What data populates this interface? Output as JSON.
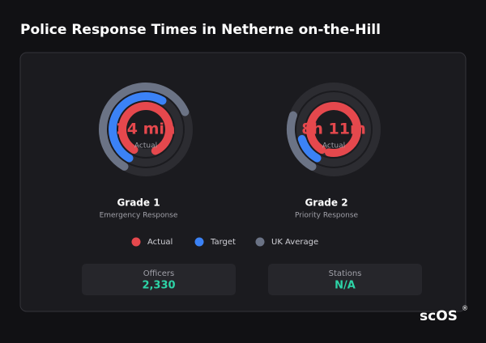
{
  "header": {
    "title": "Police Response Times in Netherne on-the-Hill"
  },
  "series": [
    {
      "name": "Actual",
      "color": "#e5484d"
    },
    {
      "name": "Target",
      "color": "#3b82f6"
    },
    {
      "name": "UK Average",
      "color": "#6b7385"
    }
  ],
  "gauges": [
    {
      "name": "Grade 1",
      "subtitle": "Emergency Response",
      "display": "24 min",
      "display_label": "Actual",
      "values": [
        85,
        50,
        60
      ]
    },
    {
      "name": "Grade 2",
      "subtitle": "Priority Response",
      "display": "8h 11m",
      "display_label": "Actual",
      "values": [
        95,
        12,
        22
      ]
    }
  ],
  "stats": [
    {
      "label": "Officers",
      "value": "2,330"
    },
    {
      "label": "Stations",
      "value": "N/A"
    }
  ],
  "logo": {
    "text": "scOS",
    "mark": "®"
  }
}
